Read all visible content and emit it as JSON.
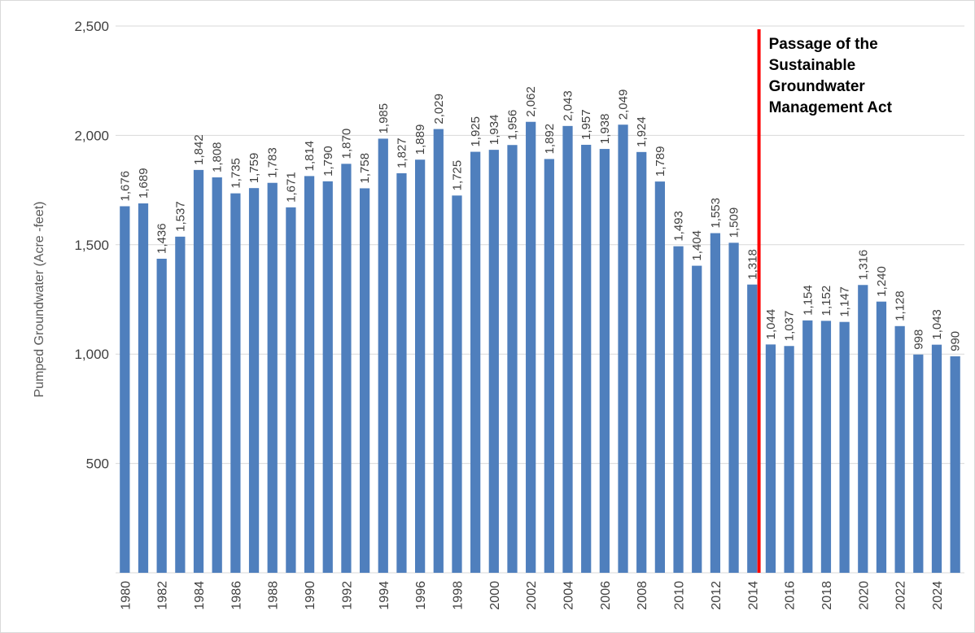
{
  "chart_data": {
    "type": "bar",
    "y_label": "Pumped Groundwater (Acre -feet)",
    "categories": [
      "1980",
      null,
      "1982",
      null,
      "1984",
      null,
      "1986",
      null,
      "1988",
      null,
      "1990",
      null,
      "1992",
      null,
      "1994",
      null,
      "1996",
      null,
      "1998",
      null,
      "2000",
      null,
      "2002",
      null,
      "2004",
      null,
      "2006",
      null,
      "2008",
      null,
      "2010",
      null,
      "2012",
      null,
      "2014",
      null,
      "2016",
      null,
      "2018",
      null,
      "2020",
      null,
      "2022",
      null,
      "2024",
      null
    ],
    "values": [
      1676,
      1689,
      1436,
      1537,
      1842,
      1808,
      1735,
      1759,
      1783,
      1671,
      1814,
      1790,
      1870,
      1758,
      1985,
      1827,
      1889,
      2029,
      1725,
      1925,
      1934,
      1956,
      2062,
      1892,
      2043,
      1957,
      1938,
      2049,
      1924,
      1789,
      1493,
      1404,
      1553,
      1509,
      1318,
      1044,
      1037,
      1154,
      1152,
      1147,
      1316,
      1240,
      1128,
      998,
      1043,
      990
    ],
    "value_labels": [
      "1,676",
      "1,689",
      "1,436",
      "1,537",
      "1,842",
      "1,808",
      "1,735",
      "1,759",
      "1,783",
      "1,671",
      "1,814",
      "1,790",
      "1,870",
      "1,758",
      "1,985",
      "1,827",
      "1,889",
      "2,029",
      "1,725",
      "1,925",
      "1,934",
      "1,956",
      "2,062",
      "1,892",
      "2,043",
      "1,957",
      "1,938",
      "2,049",
      "1,924",
      "1,789",
      "1,493",
      "1,404",
      "1,553",
      "1,509",
      "1,318",
      "1,044",
      "1,037",
      "1,154",
      "1,152",
      "1,147",
      "1,316",
      "1,240",
      "1,128",
      "998",
      "1,043",
      "990"
    ],
    "color": "#4f7fbd",
    "ylim": [
      0,
      2500
    ],
    "yticks": [
      500,
      {
        "value": 1000,
        "label": "1,000"
      },
      {
        "value": 1500,
        "label": "1,500"
      },
      {
        "value": 2000,
        "label": "2,000"
      },
      {
        "value": 2500,
        "label": "2,500"
      }
    ],
    "grid": true,
    "annotation": {
      "text": [
        "Passage of the",
        "Sustainable",
        "Groundwater",
        "Management Act"
      ],
      "color": "#ff0000"
    }
  }
}
